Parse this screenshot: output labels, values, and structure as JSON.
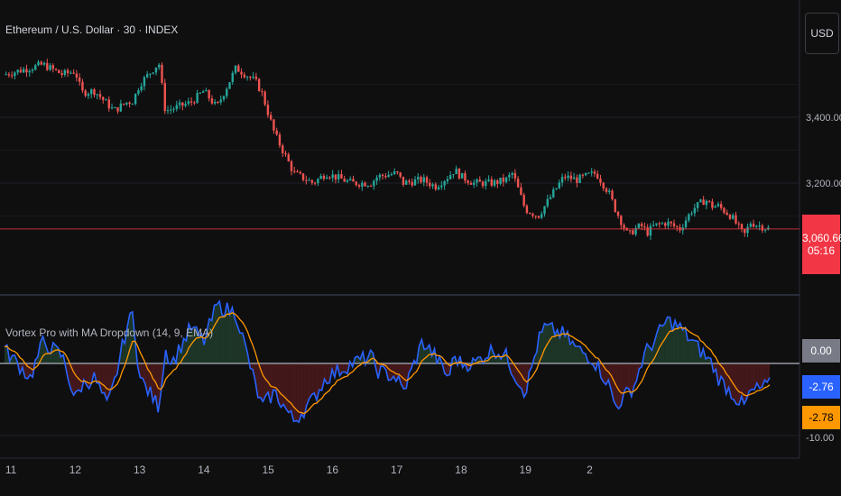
{
  "header": {
    "title": "Ethereum / U.S. Dollar · 30 · INDEX",
    "currency_button": "USD"
  },
  "price_pane": {
    "y_ticks": [
      "3,400.00",
      "3,200.00"
    ],
    "last_price": "3,060.66",
    "countdown": "05:16"
  },
  "indicator_pane": {
    "title": "Vortex Pro with MA Dropdown (14, 9, EMA)",
    "zero_label": "0.00",
    "vortex_value": "-2.76",
    "ma_value": "-2.78",
    "partial_tick": "-10.00"
  },
  "x_axis": {
    "labels": [
      "11",
      "12",
      "13",
      "14",
      "15",
      "16",
      "17",
      "18",
      "19",
      "2"
    ]
  },
  "colors": {
    "up": "#26a69a",
    "down": "#ef5350",
    "vortex": "#2962ff",
    "ma": "#ff9800",
    "pos_fill": "#1f3b2a",
    "neg_fill": "#4a1a1c",
    "price_line": "#f23645"
  },
  "chart_data": {
    "type": "line",
    "title": "Ethereum / U.S. Dollar · 30 · INDEX",
    "price_anchors": {
      "day": [
        10.9,
        11.3,
        11.5,
        11.8,
        12.0,
        12.1,
        12.3,
        12.5,
        12.6,
        12.8,
        12.9,
        13.0,
        13.3,
        13.4,
        13.5,
        13.8,
        14.0,
        14.2,
        14.5,
        14.8,
        14.9,
        15.1,
        15.4,
        15.7,
        15.9,
        16.3,
        16.6,
        16.7,
        17.0,
        17.1,
        17.4,
        17.6,
        17.8,
        17.9,
        18.0,
        18.2,
        18.5,
        18.7,
        18.8,
        19.0,
        19.2,
        19.3,
        19.6,
        19.8,
        20.0,
        20.1,
        20.3,
        20.4,
        20.6,
        20.7,
        20.8,
        20.9,
        21.0,
        21.2,
        21.4,
        21.6,
        21.8,
        21.9,
        22.0,
        22.2,
        22.4,
        22.5,
        22.8
      ],
      "price": [
        3530,
        3550,
        3560,
        3530,
        3540,
        3475,
        3480,
        3440,
        3420,
        3445,
        3450,
        3500,
        3565,
        3420,
        3425,
        3445,
        3480,
        3430,
        3550,
        3510,
        3475,
        3350,
        3230,
        3200,
        3230,
        3200,
        3200,
        3220,
        3230,
        3200,
        3210,
        3190,
        3220,
        3240,
        3220,
        3200,
        3200,
        3210,
        3230,
        3120,
        3100,
        3130,
        3220,
        3210,
        3225,
        3230,
        3170,
        3120,
        3040,
        3060,
        3070,
        3050,
        3070,
        3080,
        3060,
        3120,
        3150,
        3130,
        3130,
        3100,
        3040,
        3080,
        3060
      ]
    },
    "price_axis": {
      "ticks": [
        3400,
        3200
      ],
      "last": 3060.66
    },
    "vortex_anchors": {
      "day": [
        10.9,
        11.3,
        11.5,
        11.8,
        12.0,
        12.1,
        12.3,
        12.5,
        12.6,
        12.8,
        12.9,
        13.0,
        13.3,
        13.4,
        13.5,
        13.8,
        14.0,
        14.2,
        14.5,
        14.8,
        14.9,
        15.1,
        15.4,
        15.7,
        15.9,
        16.3,
        16.6,
        16.7,
        17.0,
        17.1,
        17.4,
        17.6,
        17.8,
        17.9,
        18.0,
        18.2,
        18.5,
        18.7,
        18.8,
        19.0,
        19.2,
        19.3,
        19.6,
        19.8,
        20.0,
        20.1,
        20.3,
        20.4,
        20.6,
        20.7,
        20.8,
        20.9,
        21.0,
        21.2,
        21.4,
        21.6,
        21.8,
        21.9,
        22.0,
        22.2,
        22.4,
        22.5,
        22.8
      ],
      "value": [
        2,
        -2,
        3,
        1,
        -5,
        -3,
        -2,
        -6,
        -3,
        5,
        7,
        -2,
        -6,
        2,
        0,
        5,
        3,
        8,
        7,
        -3,
        -6,
        -4,
        -8,
        -5,
        -2,
        0,
        1,
        -1,
        -2,
        -4,
        3,
        1,
        -2,
        1,
        0,
        0,
        2,
        1,
        -1,
        -4,
        3,
        5,
        4,
        2,
        1,
        0,
        -3,
        -6,
        -4,
        -3,
        0,
        2,
        3,
        6,
        5,
        3,
        1,
        0,
        -2,
        -4,
        -6,
        -4,
        -3
      ]
    }
  }
}
